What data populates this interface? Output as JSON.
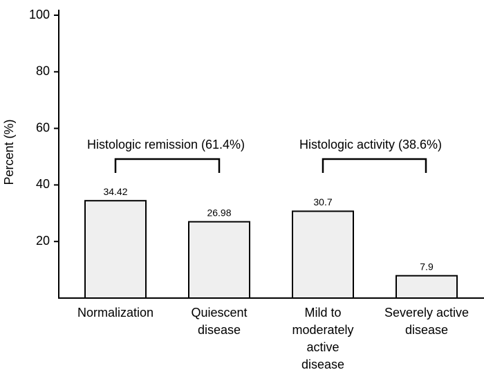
{
  "chart_data": {
    "type": "bar",
    "y_label": "Percent (%)",
    "categories": [
      "Normalization",
      "Quiescent disease",
      "Mild to moderately active disease",
      "Severely active disease"
    ],
    "values": [
      34.42,
      26.98,
      30.7,
      7.9
    ],
    "color": "#efefef",
    "ylim": [
      0,
      100
    ],
    "yticks": [
      20,
      40,
      60,
      80,
      100
    ],
    "annotations": [
      "Histologic remission (61.4%)",
      "Histologic activity (38.6%)"
    ]
  }
}
